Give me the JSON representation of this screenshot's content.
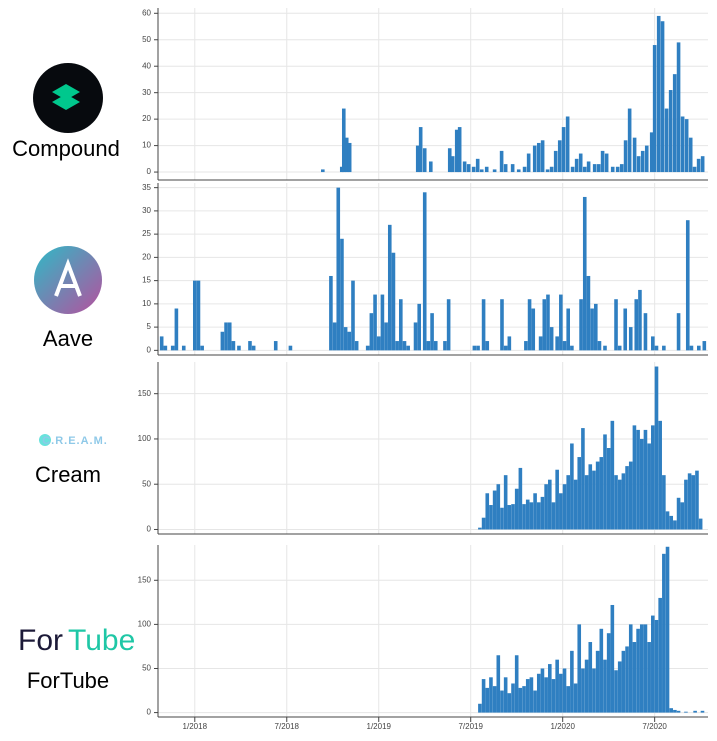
{
  "chart_data": [
    {
      "type": "bar",
      "label": "Compound",
      "color": "#2f7fc1",
      "x": [
        2018.696,
        2018.799,
        2018.81,
        2018.826,
        2018.842,
        2019.212,
        2019.228,
        2019.25,
        2019.283,
        2019.386,
        2019.402,
        2019.424,
        2019.44,
        2019.467,
        2019.489,
        2019.516,
        2019.538,
        2019.56,
        2019.587,
        2019.63,
        2019.668,
        2019.69,
        2019.728,
        2019.761,
        2019.793,
        2019.815,
        2019.848,
        2019.87,
        2019.891,
        2019.918,
        2019.94,
        2019.962,
        2019.984,
        2020.005,
        2020.027,
        2020.054,
        2020.076,
        2020.098,
        2020.12,
        2020.141,
        2020.174,
        2020.196,
        2020.217,
        2020.239,
        2020.272,
        2020.299,
        2020.321,
        2020.342,
        2020.364,
        2020.391,
        2020.413,
        2020.435,
        2020.457,
        2020.484,
        2020.5,
        2020.522,
        2020.543,
        2020.565,
        2020.587,
        2020.609,
        2020.63,
        2020.652,
        2020.674,
        2020.696,
        2020.717,
        2020.739,
        2020.761
      ],
      "values": [
        1,
        2,
        24,
        13,
        11,
        10,
        17,
        9,
        4,
        9,
        6,
        16,
        17,
        4,
        3,
        2,
        5,
        1,
        2,
        1,
        8,
        3,
        3,
        1,
        2,
        7,
        10,
        11,
        12,
        1,
        2,
        8,
        12,
        17,
        21,
        2,
        5,
        7,
        2,
        4,
        3,
        3,
        8,
        7,
        2,
        2,
        3,
        12,
        24,
        13,
        6,
        8,
        10,
        15,
        48,
        59,
        57,
        24,
        31,
        37,
        49,
        21,
        20,
        13,
        2,
        5,
        6
      ],
      "xlim": [
        2017.8,
        2020.79
      ],
      "ylim": [
        -3,
        62
      ],
      "yticks": [
        0,
        10,
        20,
        30,
        40,
        50,
        60
      ]
    },
    {
      "type": "bar",
      "label": "Aave",
      "color": "#2f7fc1",
      "x": [
        2017.82,
        2017.84,
        2017.88,
        2017.9,
        2017.94,
        2018.0,
        2018.02,
        2018.04,
        2018.15,
        2018.17,
        2018.19,
        2018.21,
        2018.24,
        2018.3,
        2018.32,
        2018.44,
        2018.52,
        2018.74,
        2018.76,
        2018.78,
        2018.8,
        2018.82,
        2018.84,
        2018.86,
        2018.88,
        2018.94,
        2018.96,
        2018.98,
        2019.0,
        2019.02,
        2019.04,
        2019.06,
        2019.08,
        2019.1,
        2019.12,
        2019.14,
        2019.16,
        2019.2,
        2019.22,
        2019.25,
        2019.27,
        2019.29,
        2019.31,
        2019.36,
        2019.38,
        2019.52,
        2019.54,
        2019.57,
        2019.59,
        2019.67,
        2019.69,
        2019.71,
        2019.8,
        2019.82,
        2019.84,
        2019.88,
        2019.9,
        2019.92,
        2019.94,
        2019.97,
        2019.99,
        2020.01,
        2020.03,
        2020.05,
        2020.1,
        2020.12,
        2020.14,
        2020.16,
        2020.18,
        2020.2,
        2020.23,
        2020.29,
        2020.31,
        2020.34,
        2020.37,
        2020.4,
        2020.42,
        2020.45,
        2020.49,
        2020.51,
        2020.55,
        2020.63,
        2020.68,
        2020.7,
        2020.74,
        2020.77
      ],
      "values": [
        3,
        1,
        1,
        9,
        1,
        15,
        15,
        1,
        4,
        6,
        6,
        2,
        1,
        2,
        1,
        2,
        1,
        16,
        6,
        35,
        24,
        5,
        4,
        15,
        2,
        1,
        8,
        12,
        3,
        12,
        6,
        27,
        21,
        2,
        11,
        2,
        1,
        6,
        10,
        34,
        2,
        8,
        2,
        2,
        11,
        1,
        1,
        11,
        2,
        11,
        1,
        3,
        2,
        11,
        9,
        3,
        11,
        12,
        5,
        3,
        12,
        2,
        9,
        1,
        11,
        33,
        16,
        9,
        10,
        2,
        1,
        11,
        1,
        9,
        5,
        11,
        13,
        8,
        3,
        1,
        1,
        8,
        28,
        1,
        1,
        2
      ],
      "xlim": [
        2017.8,
        2020.79
      ],
      "ylim": [
        -1,
        36
      ],
      "yticks": [
        0,
        5,
        10,
        15,
        20,
        25,
        30,
        35
      ]
    },
    {
      "type": "bar",
      "label": "Cream",
      "logo_text": "C.R.E.A.M.",
      "color": "#2f7fc1",
      "x": [
        2019.55,
        2019.57,
        2019.59,
        2019.61,
        2019.63,
        2019.65,
        2019.67,
        2019.69,
        2019.71,
        2019.73,
        2019.75,
        2019.77,
        2019.79,
        2019.81,
        2019.83,
        2019.85,
        2019.87,
        2019.89,
        2019.91,
        2019.93,
        2019.95,
        2019.97,
        2019.99,
        2020.01,
        2020.03,
        2020.05,
        2020.07,
        2020.09,
        2020.11,
        2020.13,
        2020.15,
        2020.17,
        2020.19,
        2020.21,
        2020.23,
        2020.25,
        2020.27,
        2020.29,
        2020.31,
        2020.33,
        2020.35,
        2020.37,
        2020.39,
        2020.41,
        2020.43,
        2020.45,
        2020.47,
        2020.49,
        2020.51,
        2020.53,
        2020.55,
        2020.57,
        2020.59,
        2020.61,
        2020.63,
        2020.65,
        2020.67,
        2020.69,
        2020.71,
        2020.73,
        2020.75
      ],
      "values": [
        2,
        13,
        40,
        27,
        43,
        50,
        24,
        60,
        27,
        28,
        45,
        68,
        28,
        33,
        30,
        40,
        30,
        36,
        50,
        55,
        30,
        66,
        40,
        50,
        60,
        95,
        55,
        80,
        112,
        60,
        72,
        65,
        75,
        80,
        105,
        90,
        120,
        60,
        55,
        62,
        70,
        75,
        115,
        110,
        100,
        110,
        95,
        115,
        180,
        120,
        60,
        20,
        15,
        10,
        35,
        30,
        55,
        62,
        60,
        65,
        12
      ],
      "xlim": [
        2017.8,
        2020.79
      ],
      "ylim": [
        -5,
        185
      ],
      "yticks": [
        0,
        50,
        100,
        150
      ]
    },
    {
      "type": "bar",
      "label": "ForTube",
      "logo_text": [
        "For",
        "Tube"
      ],
      "color": "#2f7fc1",
      "x": [
        2019.55,
        2019.57,
        2019.59,
        2019.61,
        2019.63,
        2019.65,
        2019.67,
        2019.69,
        2019.71,
        2019.73,
        2019.75,
        2019.77,
        2019.79,
        2019.81,
        2019.83,
        2019.85,
        2019.87,
        2019.89,
        2019.91,
        2019.93,
        2019.95,
        2019.97,
        2019.99,
        2020.01,
        2020.03,
        2020.05,
        2020.07,
        2020.09,
        2020.11,
        2020.13,
        2020.15,
        2020.17,
        2020.19,
        2020.21,
        2020.23,
        2020.25,
        2020.27,
        2020.29,
        2020.31,
        2020.33,
        2020.35,
        2020.37,
        2020.39,
        2020.41,
        2020.43,
        2020.45,
        2020.47,
        2020.49,
        2020.51,
        2020.53,
        2020.55,
        2020.57,
        2020.59,
        2020.61,
        2020.63,
        2020.67,
        2020.72,
        2020.76
      ],
      "values": [
        10,
        38,
        28,
        40,
        30,
        65,
        25,
        40,
        22,
        33,
        65,
        28,
        30,
        38,
        40,
        25,
        44,
        50,
        40,
        55,
        38,
        60,
        44,
        50,
        30,
        70,
        33,
        100,
        50,
        60,
        80,
        50,
        70,
        95,
        60,
        90,
        122,
        48,
        58,
        70,
        75,
        100,
        80,
        95,
        100,
        100,
        80,
        110,
        105,
        130,
        180,
        188,
        5,
        3,
        2,
        1,
        2,
        2
      ],
      "xlim": [
        2017.8,
        2020.79
      ],
      "ylim": [
        -5,
        190
      ],
      "yticks": [
        0,
        50,
        100,
        150
      ],
      "xticks": [
        {
          "value": 2018,
          "label": "1/2018"
        },
        {
          "value": 2018.5,
          "label": "7/2018"
        },
        {
          "value": 2019,
          "label": "1/2019"
        },
        {
          "value": 2019.5,
          "label": "7/2019"
        },
        {
          "value": 2020,
          "label": "1/2020"
        },
        {
          "value": 2020.5,
          "label": "7/2020"
        }
      ]
    }
  ]
}
